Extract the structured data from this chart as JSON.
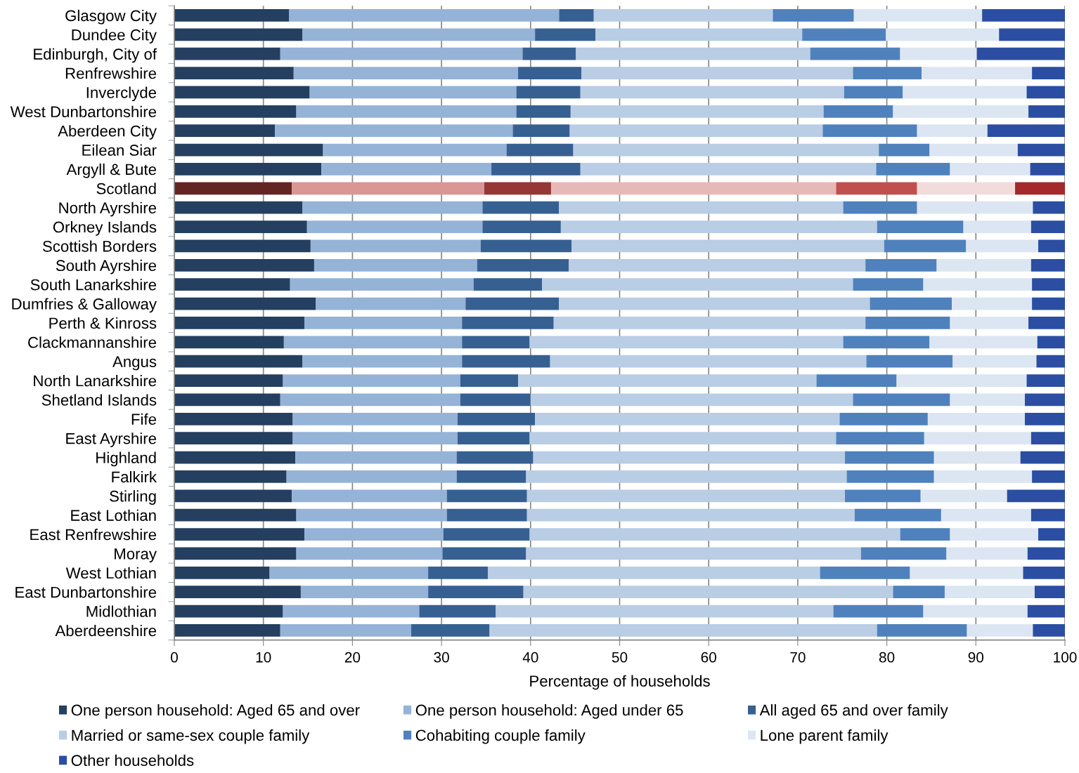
{
  "chart_data": {
    "type": "bar",
    "orientation": "horizontal",
    "stacked": true,
    "categories": [
      "Glasgow City",
      "Dundee City",
      "Edinburgh, City of",
      "Renfrewshire",
      "Inverclyde",
      "West Dunbartonshire",
      "Aberdeen City",
      "Eilean Siar",
      "Argyll & Bute",
      "Scotland",
      "North Ayrshire",
      "Orkney Islands",
      "Scottish Borders",
      "South Ayrshire",
      "South Lanarkshire",
      "Dumfries & Galloway",
      "Perth & Kinross",
      "Clackmannanshire",
      "Angus",
      "North Lanarkshire",
      "Shetland Islands",
      "Fife",
      "East Ayrshire",
      "Highland",
      "Falkirk",
      "Stirling",
      "East Lothian",
      "East Renfrewshire",
      "Moray",
      "West Lothian",
      "East Dunbartonshire",
      "Midlothian",
      "Aberdeenshire"
    ],
    "series": [
      {
        "name": "One person household: Aged 65 and over",
        "color": "#243f60",
        "colors": [
          "#243f60",
          "#243f60",
          "#243f60",
          "#243f60",
          "#243f60",
          "#243f60",
          "#243f60",
          "#243f60",
          "#243f60",
          "#632523",
          "#243f60",
          "#243f60",
          "#243f60",
          "#243f60",
          "#243f60",
          "#243f60",
          "#243f60",
          "#243f60",
          "#243f60",
          "#243f60",
          "#243f60",
          "#243f60",
          "#243f60",
          "#243f60",
          "#243f60",
          "#243f60",
          "#243f60",
          "#243f60",
          "#243f60",
          "#243f60",
          "#243f60",
          "#243f60",
          "#243f60"
        ],
        "values": [
          12.9,
          14.4,
          11.9,
          13.4,
          15.2,
          13.7,
          11.3,
          16.7,
          16.5,
          13.2,
          14.4,
          14.9,
          15.3,
          15.7,
          13.0,
          15.9,
          14.6,
          12.3,
          14.4,
          12.2,
          11.9,
          13.3,
          13.3,
          13.6,
          12.6,
          13.2,
          13.7,
          14.6,
          13.7,
          10.7,
          14.2,
          12.2,
          11.9
        ]
      },
      {
        "name": "One person household: Aged under 65",
        "color": "#95b3d7",
        "colors": [
          "#95b3d7",
          "#95b3d7",
          "#95b3d7",
          "#95b3d7",
          "#95b3d7",
          "#95b3d7",
          "#95b3d7",
          "#95b3d7",
          "#95b3d7",
          "#d99694",
          "#95b3d7",
          "#95b3d7",
          "#95b3d7",
          "#95b3d7",
          "#95b3d7",
          "#95b3d7",
          "#95b3d7",
          "#95b3d7",
          "#95b3d7",
          "#95b3d7",
          "#95b3d7",
          "#95b3d7",
          "#95b3d7",
          "#95b3d7",
          "#95b3d7",
          "#95b3d7",
          "#95b3d7",
          "#95b3d7",
          "#95b3d7",
          "#95b3d7",
          "#95b3d7",
          "#95b3d7",
          "#95b3d7"
        ],
        "values": [
          30.3,
          26.1,
          27.2,
          25.2,
          23.2,
          24.7,
          26.7,
          20.6,
          19.1,
          21.6,
          20.2,
          19.7,
          19.1,
          18.3,
          20.6,
          16.8,
          17.7,
          20.0,
          17.9,
          19.9,
          20.2,
          18.5,
          18.5,
          18.1,
          19.1,
          17.4,
          16.9,
          15.6,
          16.4,
          17.8,
          14.3,
          15.3,
          14.7
        ]
      },
      {
        "name": "All aged 65 and over family",
        "color": "#366092",
        "colors": [
          "#366092",
          "#366092",
          "#366092",
          "#366092",
          "#366092",
          "#366092",
          "#366092",
          "#366092",
          "#366092",
          "#953735",
          "#366092",
          "#366092",
          "#366092",
          "#366092",
          "#366092",
          "#366092",
          "#366092",
          "#366092",
          "#366092",
          "#366092",
          "#366092",
          "#366092",
          "#366092",
          "#366092",
          "#366092",
          "#366092",
          "#366092",
          "#366092",
          "#366092",
          "#366092",
          "#366092",
          "#366092",
          "#366092"
        ],
        "values": [
          3.9,
          6.8,
          6.0,
          7.1,
          7.2,
          6.1,
          6.4,
          7.5,
          10.0,
          7.5,
          8.6,
          8.8,
          10.2,
          10.3,
          7.7,
          10.5,
          10.3,
          7.6,
          9.9,
          6.5,
          7.9,
          8.7,
          8.1,
          8.6,
          7.8,
          9.0,
          9.0,
          9.7,
          9.4,
          6.7,
          10.7,
          8.6,
          8.8
        ]
      },
      {
        "name": "Married or same-sex couple family",
        "color": "#b9cde5",
        "colors": [
          "#b9cde5",
          "#b9cde5",
          "#b9cde5",
          "#b9cde5",
          "#b9cde5",
          "#b9cde5",
          "#b9cde5",
          "#b9cde5",
          "#b9cde5",
          "#e6b9b8",
          "#b9cde5",
          "#b9cde5",
          "#b9cde5",
          "#b9cde5",
          "#b9cde5",
          "#b9cde5",
          "#b9cde5",
          "#b9cde5",
          "#b9cde5",
          "#b9cde5",
          "#b9cde5",
          "#b9cde5",
          "#b9cde5",
          "#b9cde5",
          "#b9cde5",
          "#b9cde5",
          "#b9cde5",
          "#b9cde5",
          "#b9cde5",
          "#b9cde5",
          "#b9cde5",
          "#b9cde5",
          "#b9cde5"
        ],
        "values": [
          20.1,
          23.2,
          26.3,
          30.5,
          29.6,
          28.4,
          28.4,
          34.3,
          33.2,
          32.0,
          31.9,
          35.5,
          35.1,
          33.3,
          34.9,
          34.9,
          35.0,
          35.2,
          35.5,
          33.5,
          36.2,
          34.2,
          34.4,
          35.0,
          36.0,
          35.7,
          36.8,
          41.6,
          37.6,
          37.3,
          41.5,
          37.9,
          43.5
        ]
      },
      {
        "name": "Cohabiting couple family",
        "color": "#4f81bd",
        "colors": [
          "#4f81bd",
          "#4f81bd",
          "#4f81bd",
          "#4f81bd",
          "#4f81bd",
          "#4f81bd",
          "#4f81bd",
          "#4f81bd",
          "#4f81bd",
          "#c0504d",
          "#4f81bd",
          "#4f81bd",
          "#4f81bd",
          "#4f81bd",
          "#4f81bd",
          "#4f81bd",
          "#4f81bd",
          "#4f81bd",
          "#4f81bd",
          "#4f81bd",
          "#4f81bd",
          "#4f81bd",
          "#4f81bd",
          "#4f81bd",
          "#4f81bd",
          "#4f81bd",
          "#4f81bd",
          "#4f81bd",
          "#4f81bd",
          "#4f81bd",
          "#4f81bd",
          "#4f81bd",
          "#4f81bd"
        ],
        "values": [
          9.1,
          9.4,
          10.1,
          7.7,
          6.6,
          7.8,
          10.6,
          5.7,
          8.3,
          9.1,
          8.3,
          9.7,
          9.2,
          8.0,
          7.9,
          9.2,
          9.5,
          9.7,
          9.7,
          9.0,
          10.9,
          9.9,
          9.9,
          10.0,
          9.8,
          8.5,
          9.7,
          5.6,
          9.6,
          10.1,
          5.8,
          10.1,
          10.1
        ]
      },
      {
        "name": "Lone parent family",
        "color": "#dce6f2",
        "colors": [
          "#dce6f2",
          "#dce6f2",
          "#dce6f2",
          "#dce6f2",
          "#dce6f2",
          "#dce6f2",
          "#dce6f2",
          "#dce6f2",
          "#dce6f2",
          "#f2dcdb",
          "#dce6f2",
          "#dce6f2",
          "#dce6f2",
          "#dce6f2",
          "#dce6f2",
          "#dce6f2",
          "#dce6f2",
          "#dce6f2",
          "#dce6f2",
          "#dce6f2",
          "#dce6f2",
          "#dce6f2",
          "#dce6f2",
          "#dce6f2",
          "#dce6f2",
          "#dce6f2",
          "#dce6f2",
          "#dce6f2",
          "#dce6f2",
          "#dce6f2",
          "#dce6f2",
          "#dce6f2",
          "#dce6f2"
        ],
        "values": [
          14.4,
          12.7,
          8.6,
          12.4,
          13.9,
          15.2,
          7.9,
          9.9,
          9.0,
          11.0,
          13.0,
          7.6,
          8.1,
          10.6,
          12.2,
          9.0,
          8.8,
          12.1,
          9.4,
          14.6,
          8.4,
          10.9,
          12.0,
          9.7,
          11.0,
          9.7,
          10.1,
          9.9,
          9.1,
          12.7,
          10.1,
          11.7,
          7.4
        ]
      },
      {
        "name": "Other households",
        "color": "#2b4ea2",
        "colors": [
          "#2b4ea2",
          "#2b4ea2",
          "#2b4ea2",
          "#2b4ea2",
          "#2b4ea2",
          "#2b4ea2",
          "#2b4ea2",
          "#2b4ea2",
          "#2b4ea2",
          "#a4292b",
          "#2b4ea2",
          "#2b4ea2",
          "#2b4ea2",
          "#2b4ea2",
          "#2b4ea2",
          "#2b4ea2",
          "#2b4ea2",
          "#2b4ea2",
          "#2b4ea2",
          "#2b4ea2",
          "#2b4ea2",
          "#2b4ea2",
          "#2b4ea2",
          "#2b4ea2",
          "#2b4ea2",
          "#2b4ea2",
          "#2b4ea2",
          "#2b4ea2",
          "#2b4ea2",
          "#2b4ea2",
          "#2b4ea2",
          "#2b4ea2",
          "#2b4ea2"
        ],
        "values": [
          9.3,
          7.4,
          9.9,
          3.7,
          4.3,
          4.1,
          8.7,
          5.3,
          3.9,
          5.6,
          3.6,
          3.8,
          3.0,
          3.8,
          3.7,
          3.7,
          4.1,
          3.1,
          3.2,
          4.3,
          4.5,
          4.5,
          3.8,
          5.0,
          3.7,
          6.5,
          3.8,
          3.0,
          4.2,
          4.7,
          3.4,
          4.2,
          3.6
        ]
      }
    ],
    "xlabel": "Percentage of households",
    "xlim": [
      0,
      100
    ],
    "xticks": [
      0,
      10,
      20,
      30,
      40,
      50,
      60,
      70,
      80,
      90,
      100
    ],
    "grid": "x",
    "legend": "bottom"
  }
}
